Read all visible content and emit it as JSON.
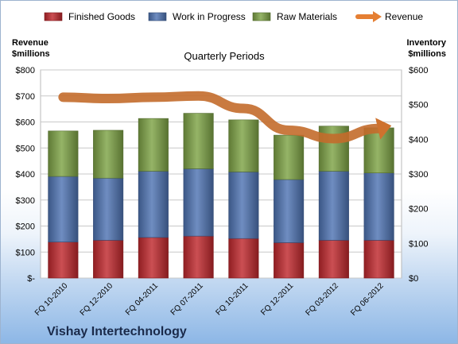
{
  "chart_data": {
    "type": "bar",
    "stacked": true,
    "title": "Quarterly Periods",
    "company": "Vishay Intertechnology",
    "categories": [
      "FQ 10-2010",
      "FQ 12-2010",
      "FQ 04-2011",
      "FQ 07-2011",
      "FQ 10-2011",
      "FQ 12-2011",
      "FQ 03-2012",
      "FQ 06-2012"
    ],
    "left_axis": {
      "label": "Revenue\n$millions",
      "ylim": [
        0,
        800
      ],
      "ticks": [
        "$-",
        "$100",
        "$200",
        "$300",
        "$400",
        "$500",
        "$600",
        "$700",
        "$800"
      ]
    },
    "right_axis": {
      "label": "Inventory\n$millions",
      "ylim": [
        0,
        600
      ],
      "ticks": [
        "$0",
        "$100",
        "$200",
        "$300",
        "$400",
        "$500",
        "$600"
      ]
    },
    "grid": true,
    "legend_position": "top",
    "series": [
      {
        "name": "Finished Goods",
        "axis": "right",
        "type": "bar",
        "color": "#c0282d",
        "values": [
          104,
          109,
          117,
          121,
          114,
          102,
          109,
          109
        ]
      },
      {
        "name": "Work in Progress",
        "axis": "right",
        "type": "bar",
        "color": "#4f74b3",
        "values": [
          189,
          179,
          191,
          194,
          192,
          182,
          199,
          194
        ]
      },
      {
        "name": "Raw Materials",
        "axis": "right",
        "type": "bar",
        "color": "#7ea346",
        "values": [
          131,
          138,
          152,
          160,
          150,
          128,
          130,
          130
        ]
      },
      {
        "name": "Revenue",
        "axis": "left",
        "type": "line",
        "color": "#e57f33",
        "values": [
          695,
          690,
          695,
          700,
          652,
          568,
          536,
          575
        ]
      }
    ]
  }
}
